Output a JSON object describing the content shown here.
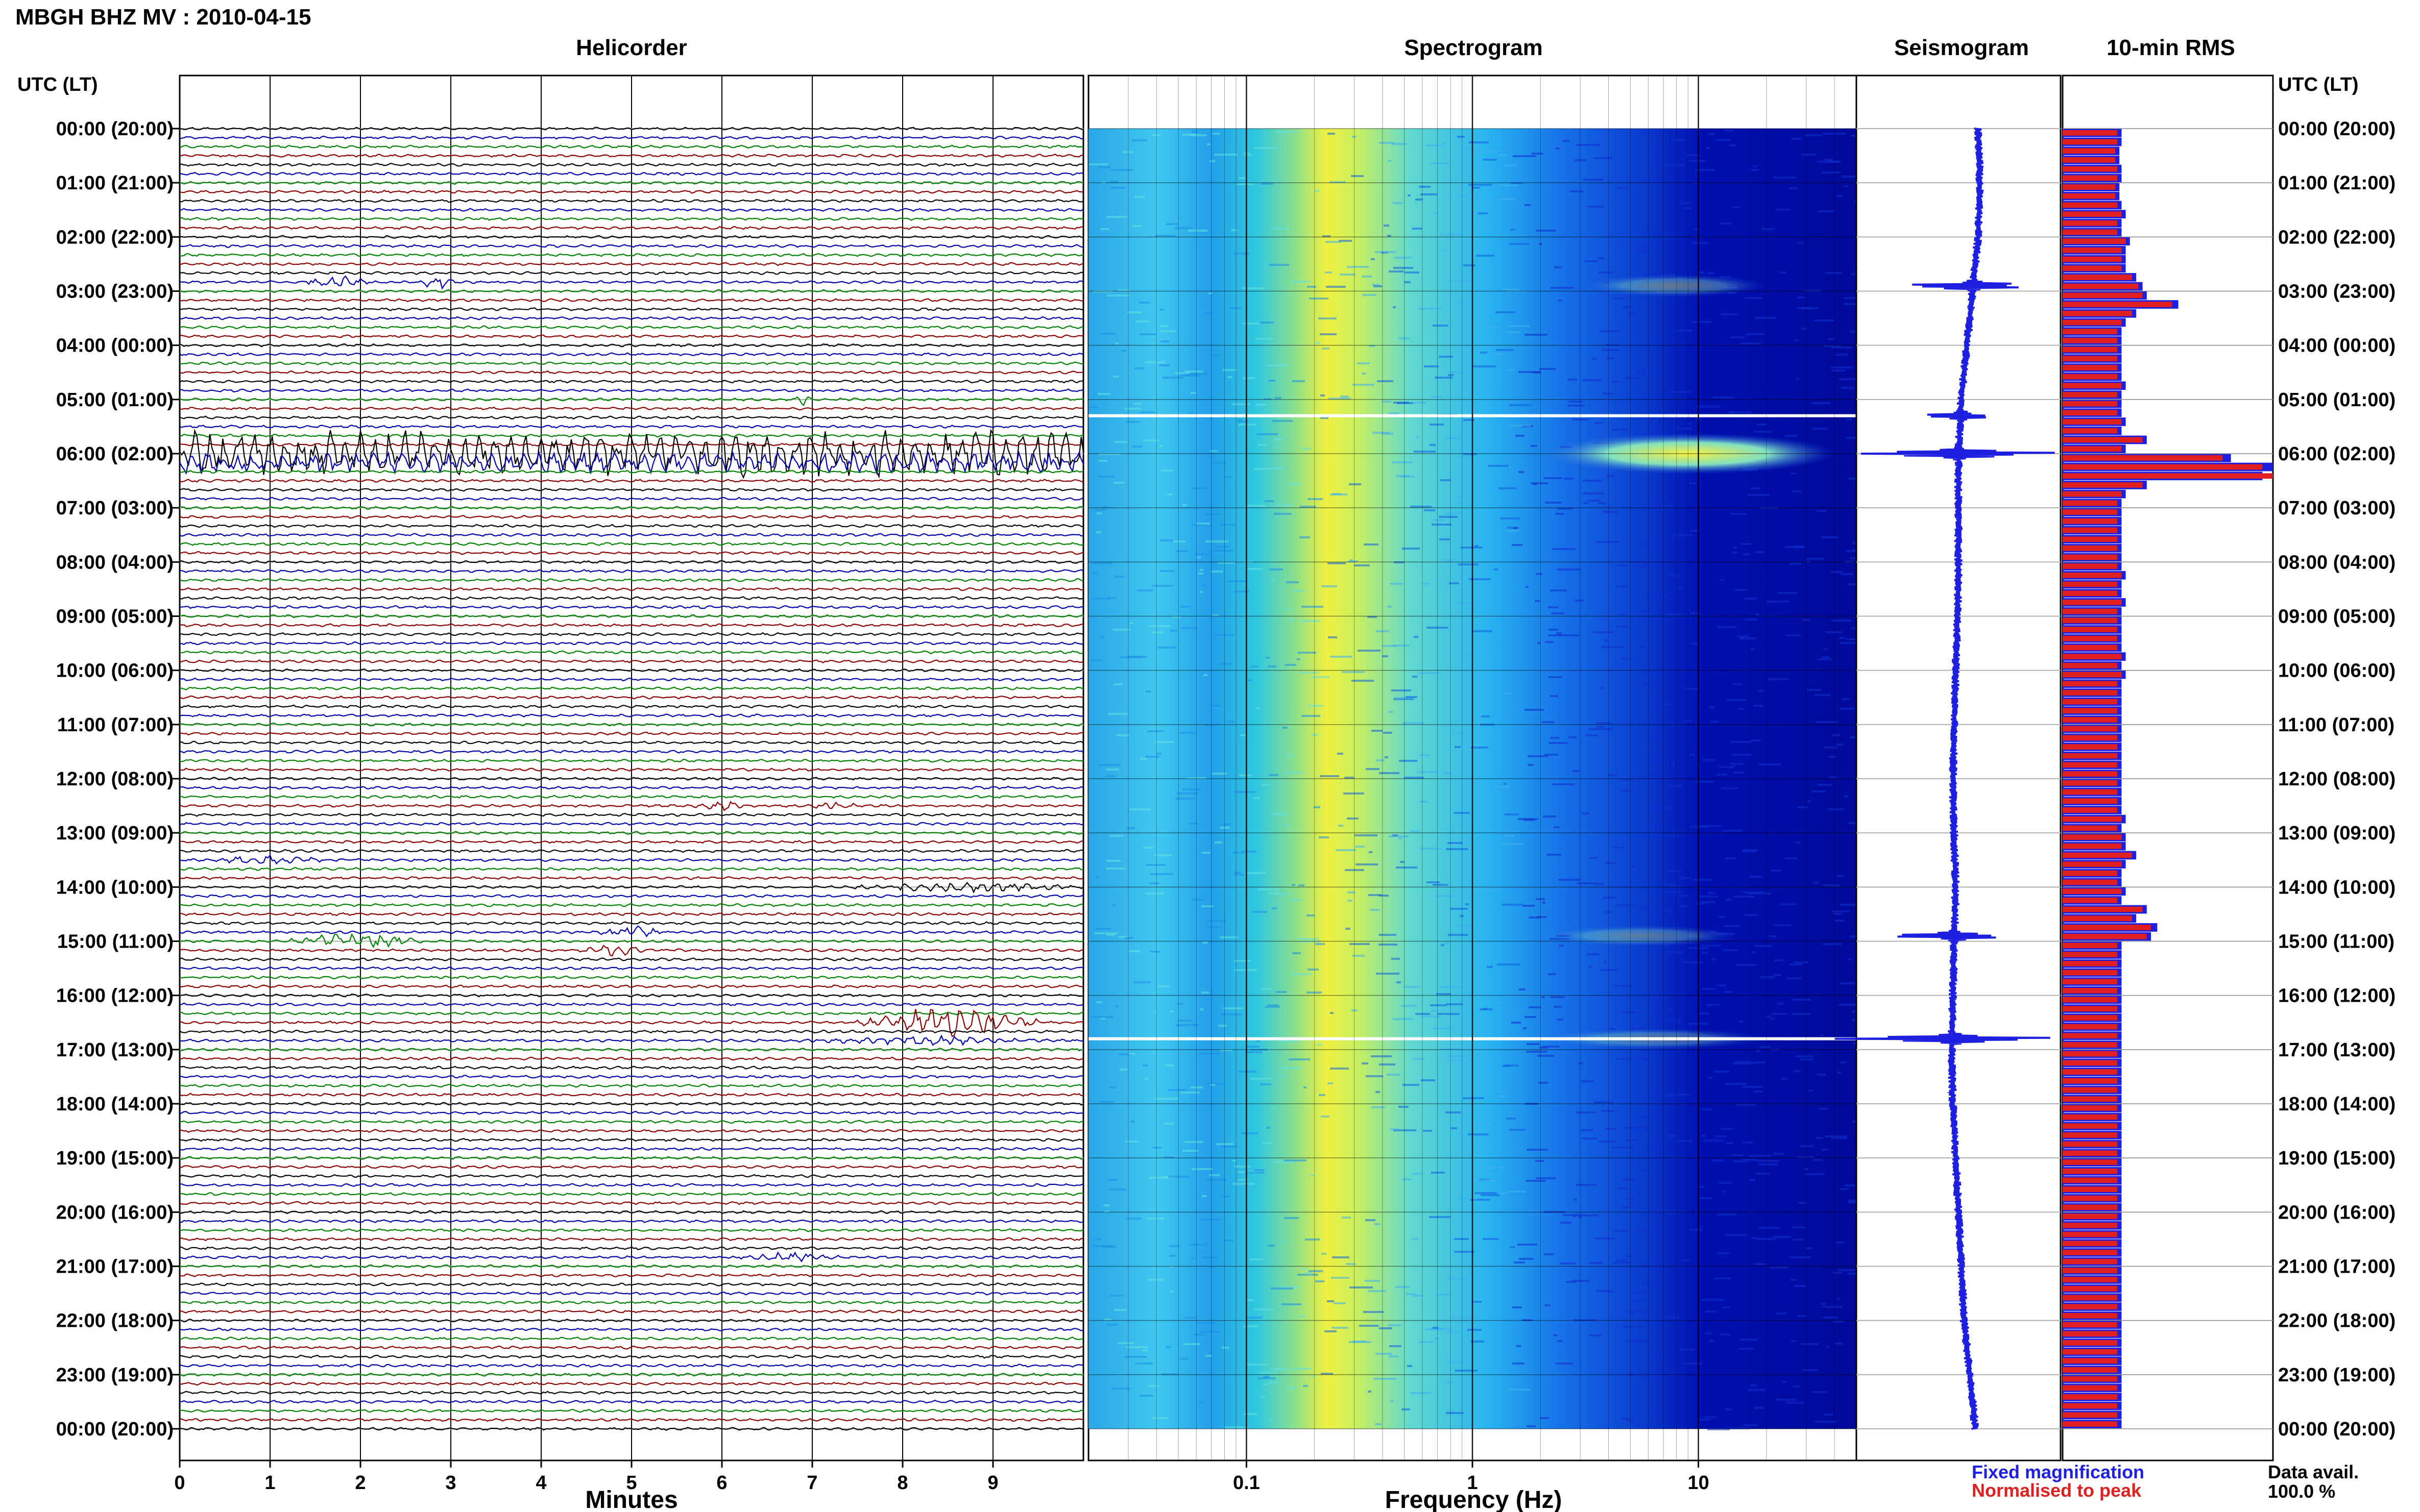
{
  "header": {
    "title": "MBGH BHZ MV : 2010-04-15",
    "utc_label_left": "UTC (LT)",
    "utc_label_right": "UTC (LT)"
  },
  "panels": {
    "helicorder": "Helicorder",
    "spectrogram": "Spectrogram",
    "seismogram": "Seismogram",
    "rms": "10-min RMS"
  },
  "footer": {
    "minutes_label": "Minutes",
    "frequency_label": "Frequency (Hz)",
    "legend_fixed": "Fixed magnification",
    "legend_normalised": "Normalised to peak",
    "data_avail_label": "Data avail.",
    "data_avail_value": "100.0 %"
  },
  "colors": {
    "trace_cycle": [
      "#000000",
      "#0000aa",
      "#008000",
      "#8b0000"
    ],
    "rms_fixed": "#1f1fe0",
    "rms_normalised": "#e02020",
    "seismogram": "#1f1fe0",
    "legend_fixed": "#1f1fe0",
    "legend_normalised": "#e02020",
    "spectrogram_colormap": "jet"
  },
  "chart_data": [
    {
      "type": "heatmap",
      "panel": "helicorder",
      "title": "Helicorder",
      "xlabel": "Minutes",
      "x_ticks": [
        0,
        1,
        2,
        3,
        4,
        5,
        6,
        7,
        8,
        9
      ],
      "xlim": [
        0,
        10
      ],
      "y_tick_labels": [
        "00:00 (20:00)",
        "01:00 (21:00)",
        "02:00 (22:00)",
        "03:00 (23:00)",
        "04:00 (00:00)",
        "05:00 (01:00)",
        "06:00 (02:00)",
        "07:00 (03:00)",
        "08:00 (04:00)",
        "09:00 (05:00)",
        "10:00 (06:00)",
        "11:00 (07:00)",
        "12:00 (08:00)",
        "13:00 (09:00)",
        "14:00 (10:00)",
        "15:00 (11:00)",
        "16:00 (12:00)",
        "17:00 (13:00)",
        "18:00 (14:00)",
        "19:00 (15:00)",
        "20:00 (16:00)",
        "21:00 (17:00)",
        "22:00 (18:00)",
        "23:00 (19:00)",
        "00:00 (20:00)"
      ],
      "lines_per_hour": 6,
      "events": [
        {
          "hour": 2.9,
          "start_min": 1.3,
          "end_min": 2.1,
          "amp": 2.2
        },
        {
          "hour": 2.8,
          "start_min": 2.65,
          "end_min": 3.05,
          "amp": 2.2
        },
        {
          "hour": 4.95,
          "start_min": 6.8,
          "end_min": 7.0,
          "amp": 1.8
        },
        {
          "hour": 5.95,
          "start_min": 0.0,
          "end_min": 10.0,
          "amp": 7.0
        },
        {
          "hour": 6.05,
          "start_min": 0.0,
          "end_min": 10.0,
          "amp": 5.5
        },
        {
          "hour": 6.15,
          "start_min": 0.0,
          "end_min": 10.0,
          "amp": 3.0
        },
        {
          "hour": 12.5,
          "start_min": 5.7,
          "end_min": 6.3,
          "amp": 1.5
        },
        {
          "hour": 12.5,
          "start_min": 7.0,
          "end_min": 7.5,
          "amp": 1.5
        },
        {
          "hour": 13.45,
          "start_min": 0.4,
          "end_min": 1.6,
          "amp": 1.6
        },
        {
          "hour": 14.0,
          "start_min": 7.4,
          "end_min": 10.0,
          "amp": 1.3
        },
        {
          "hour": 14.95,
          "start_min": 1.2,
          "end_min": 2.7,
          "amp": 2.8
        },
        {
          "hour": 14.9,
          "start_min": 4.6,
          "end_min": 5.4,
          "amp": 2.0
        },
        {
          "hour": 15.15,
          "start_min": 4.4,
          "end_min": 5.3,
          "amp": 1.5
        },
        {
          "hour": 16.5,
          "start_min": 7.5,
          "end_min": 9.5,
          "amp": 5.0
        },
        {
          "hour": 16.8,
          "start_min": 6.8,
          "end_min": 9.6,
          "amp": 1.2
        },
        {
          "hour": 20.85,
          "start_min": 6.2,
          "end_min": 7.3,
          "amp": 1.4
        }
      ]
    },
    {
      "type": "heatmap",
      "panel": "spectrogram",
      "title": "Spectrogram",
      "xlabel": "Frequency (Hz)",
      "x_scale": "log",
      "xlim": [
        0.02,
        50
      ],
      "x_tick_labels": [
        "0.1",
        "1",
        "10"
      ],
      "x_ticks": [
        0.1,
        1,
        10
      ],
      "peak_frequency_hz": 0.25,
      "events": [
        {
          "hour": 6.0,
          "f_low": 2,
          "f_high": 40,
          "strength": 1.0
        },
        {
          "hour": 2.9,
          "f_low": 3,
          "f_high": 20,
          "strength": 0.4
        },
        {
          "hour": 14.9,
          "f_low": 2,
          "f_high": 15,
          "strength": 0.35
        },
        {
          "hour": 16.8,
          "f_low": 2,
          "f_high": 20,
          "strength": 0.35
        }
      ],
      "gaps_hours": [
        5.3,
        16.8
      ]
    },
    {
      "type": "line",
      "panel": "seismogram",
      "title": "Seismogram",
      "hours": [
        0,
        1,
        2,
        3,
        4,
        5,
        6,
        7,
        8,
        9,
        10,
        11,
        12,
        13,
        14,
        15,
        16,
        17,
        18,
        19,
        20,
        21,
        22,
        23,
        24
      ],
      "baseline_offset": [
        0.35,
        0.38,
        0.35,
        0.25,
        0.15,
        0.05,
        0.0,
        0.0,
        0.0,
        -0.02,
        -0.05,
        -0.08,
        -0.1,
        -0.08,
        -0.05,
        -0.08,
        -0.1,
        -0.12,
        -0.1,
        -0.05,
        0.0,
        0.05,
        0.1,
        0.2,
        0.3
      ],
      "spikes": [
        {
          "hour": 2.9,
          "width": 0.6
        },
        {
          "hour": 5.3,
          "width": 0.3
        },
        {
          "hour": 6.0,
          "width": 0.9
        },
        {
          "hour": 14.9,
          "width": 0.5
        },
        {
          "hour": 16.8,
          "width": 1.0
        }
      ]
    },
    {
      "type": "bar",
      "panel": "rms",
      "title": "10-min RMS",
      "orientation": "horizontal",
      "interval_minutes": 10,
      "fixed_magnification": [
        0.28,
        0.28,
        0.27,
        0.27,
        0.28,
        0.28,
        0.27,
        0.27,
        0.28,
        0.3,
        0.28,
        0.28,
        0.32,
        0.3,
        0.3,
        0.3,
        0.35,
        0.38,
        0.4,
        0.55,
        0.35,
        0.3,
        0.28,
        0.28,
        0.28,
        0.28,
        0.28,
        0.28,
        0.3,
        0.28,
        0.28,
        0.28,
        0.3,
        0.28,
        0.4,
        0.3,
        0.8,
        1.0,
        0.95,
        0.4,
        0.3,
        0.28,
        0.28,
        0.28,
        0.28,
        0.28,
        0.28,
        0.28,
        0.28,
        0.3,
        0.28,
        0.28,
        0.3,
        0.28,
        0.28,
        0.28,
        0.28,
        0.28,
        0.3,
        0.28,
        0.3,
        0.28,
        0.28,
        0.28,
        0.28,
        0.28,
        0.28,
        0.28,
        0.28,
        0.28,
        0.28,
        0.28,
        0.28,
        0.28,
        0.28,
        0.28,
        0.3,
        0.28,
        0.3,
        0.3,
        0.35,
        0.3,
        0.28,
        0.28,
        0.3,
        0.28,
        0.4,
        0.35,
        0.45,
        0.42,
        0.28,
        0.28,
        0.28,
        0.28,
        0.28,
        0.28,
        0.28,
        0.28,
        0.28,
        0.28,
        0.28,
        0.28,
        0.28,
        0.28,
        0.28,
        0.28,
        0.28,
        0.28,
        0.28,
        0.28,
        0.28,
        0.28,
        0.28,
        0.28,
        0.28,
        0.28,
        0.28,
        0.28,
        0.28,
        0.28,
        0.28,
        0.28,
        0.28,
        0.28,
        0.28,
        0.28,
        0.28,
        0.28,
        0.28,
        0.28,
        0.28,
        0.28,
        0.28,
        0.28,
        0.28,
        0.28,
        0.28,
        0.28,
        0.28,
        0.28,
        0.28,
        0.28,
        0.28,
        0.28
      ],
      "normalised_to_peak": [
        0.26,
        0.26,
        0.25,
        0.25,
        0.26,
        0.26,
        0.25,
        0.25,
        0.26,
        0.28,
        0.26,
        0.26,
        0.3,
        0.28,
        0.28,
        0.28,
        0.33,
        0.36,
        0.38,
        0.52,
        0.33,
        0.28,
        0.26,
        0.26,
        0.26,
        0.26,
        0.26,
        0.26,
        0.28,
        0.26,
        0.26,
        0.26,
        0.28,
        0.26,
        0.38,
        0.28,
        0.76,
        0.95,
        1.0,
        0.38,
        0.28,
        0.26,
        0.26,
        0.26,
        0.26,
        0.26,
        0.26,
        0.26,
        0.26,
        0.28,
        0.26,
        0.26,
        0.28,
        0.26,
        0.26,
        0.26,
        0.26,
        0.26,
        0.28,
        0.26,
        0.28,
        0.26,
        0.26,
        0.26,
        0.26,
        0.26,
        0.26,
        0.26,
        0.26,
        0.26,
        0.26,
        0.26,
        0.26,
        0.26,
        0.26,
        0.26,
        0.28,
        0.26,
        0.28,
        0.28,
        0.33,
        0.28,
        0.26,
        0.26,
        0.28,
        0.26,
        0.38,
        0.33,
        0.42,
        0.4,
        0.26,
        0.26,
        0.26,
        0.26,
        0.26,
        0.26,
        0.26,
        0.26,
        0.26,
        0.26,
        0.26,
        0.26,
        0.26,
        0.26,
        0.26,
        0.26,
        0.26,
        0.26,
        0.26,
        0.26,
        0.26,
        0.26,
        0.26,
        0.26,
        0.26,
        0.26,
        0.26,
        0.26,
        0.26,
        0.26,
        0.26,
        0.26,
        0.26,
        0.26,
        0.26,
        0.26,
        0.26,
        0.26,
        0.26,
        0.26,
        0.26,
        0.26,
        0.26,
        0.26,
        0.26,
        0.26,
        0.26,
        0.26,
        0.26,
        0.26,
        0.26,
        0.26,
        0.26,
        0.26
      ]
    }
  ]
}
